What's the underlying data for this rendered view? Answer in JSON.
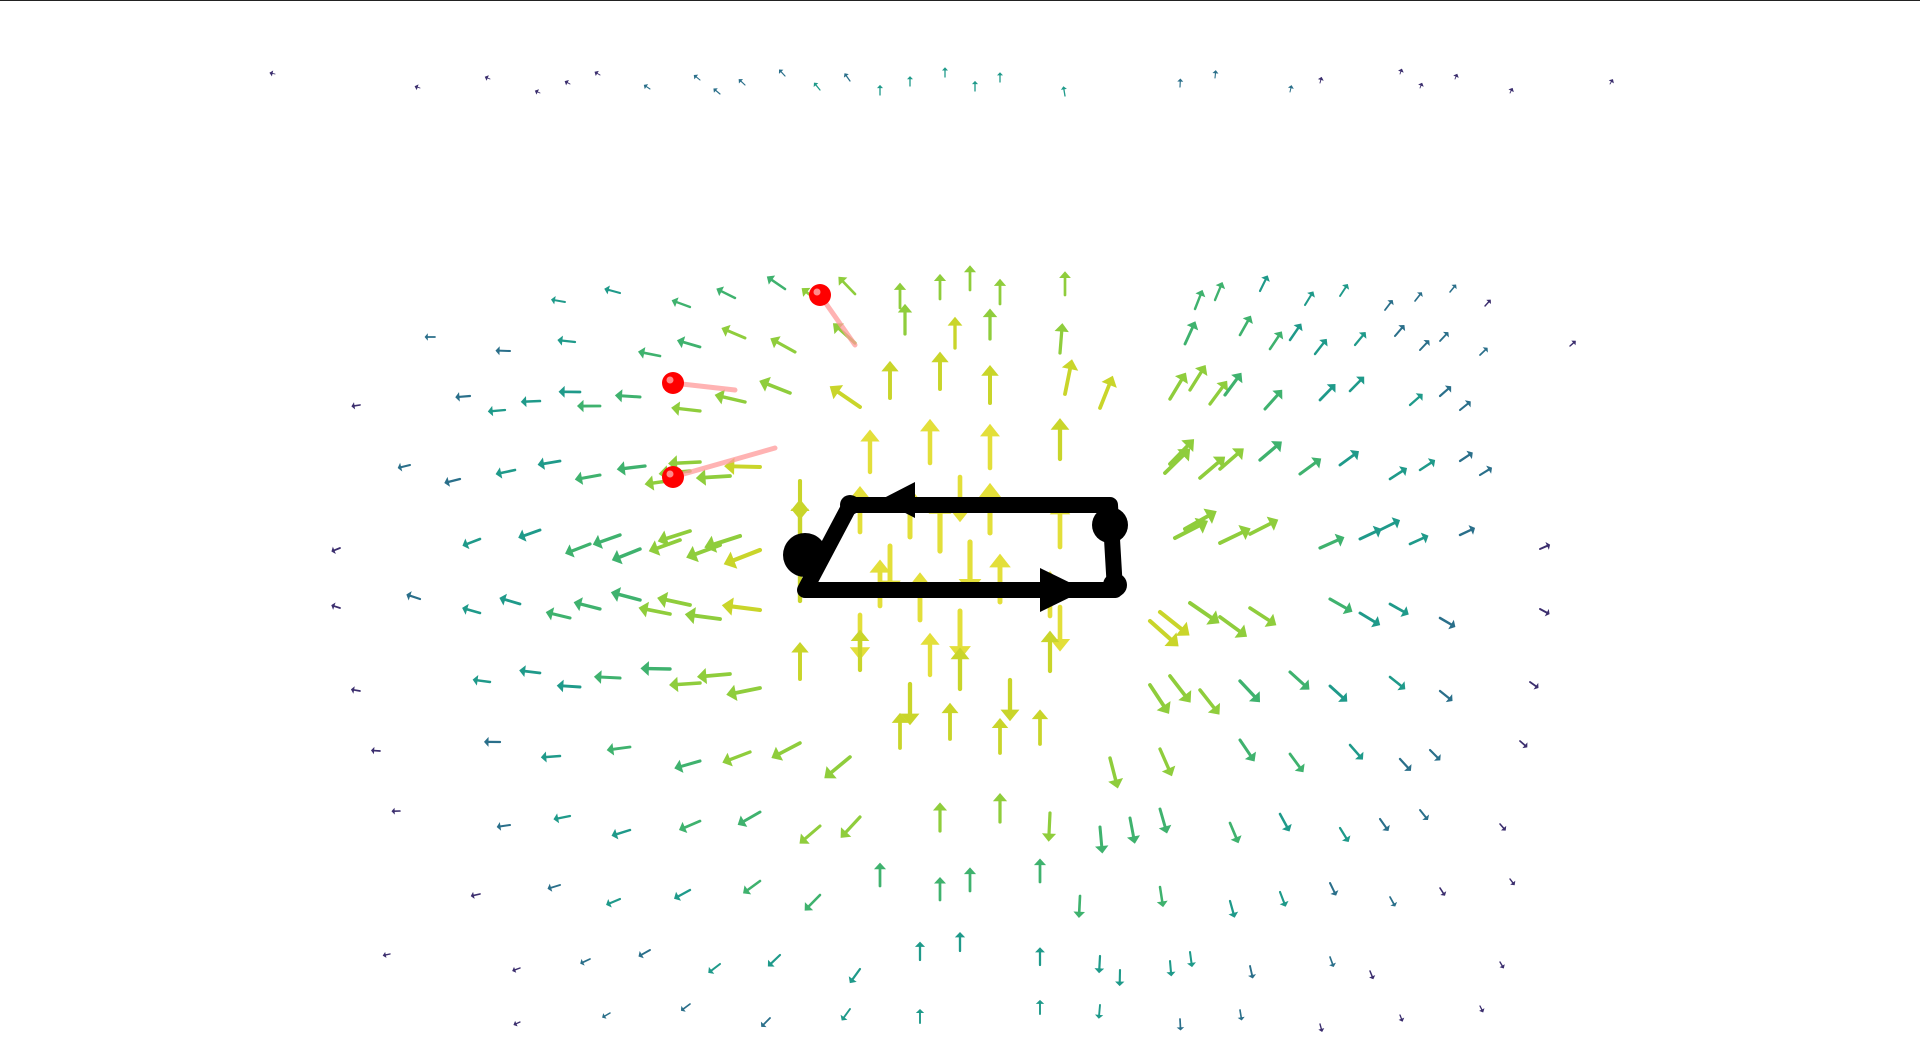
{
  "scene": {
    "description_label": "",
    "background": "#ffffff",
    "frame_color": "#222222",
    "colormap": [
      "#3b2e6e",
      "#2a6f8a",
      "#1f9a8a",
      "#3fb26e",
      "#8fcd3c",
      "#c9d52a",
      "#e3df3a"
    ],
    "loop_color": "#000000",
    "particle_color": "#ff0000",
    "particle_trail_color": "#ff9a9a",
    "current_loop": {
      "shape": "rectangle",
      "direction": "counter-clockwise-as-viewed"
    },
    "particles_count_visible": 3
  }
}
